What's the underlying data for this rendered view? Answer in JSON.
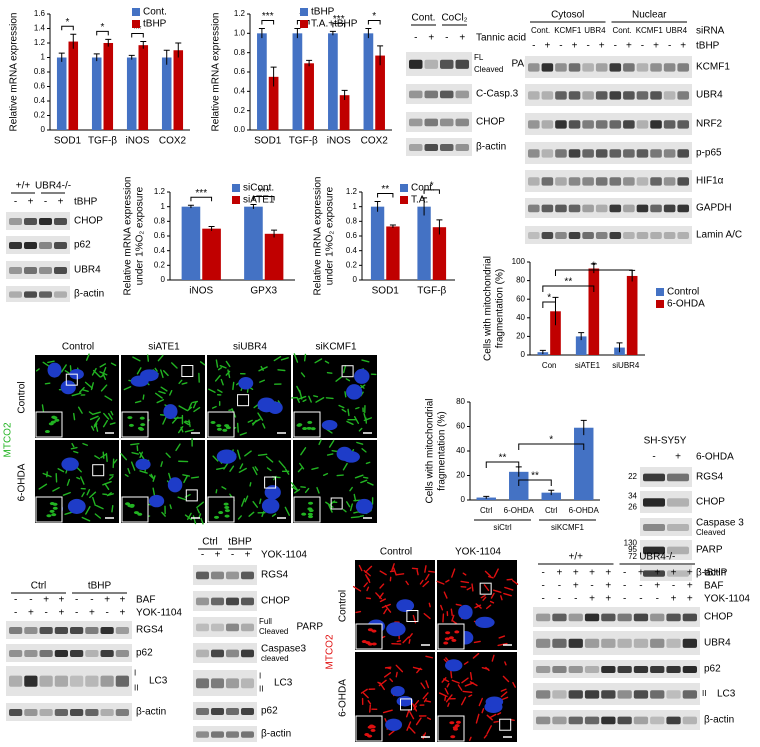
{
  "chart_data": [
    {
      "type": "bar",
      "y_label": [
        "Relative mRNA expression"
      ],
      "categories": [
        "SOD1",
        "TGF-β",
        "iNOS",
        "COX2"
      ],
      "series": [
        {
          "name": "Cont.",
          "color": "#4472c4",
          "values": [
            1,
            1,
            1,
            1
          ],
          "errors": [
            0.06,
            0.05,
            0.03,
            0.1
          ]
        },
        {
          "name": "tBHP",
          "color": "#c00000",
          "values": [
            1.22,
            1.2,
            1.17,
            1.1
          ],
          "errors": [
            0.1,
            0.05,
            0.05,
            0.1
          ]
        }
      ],
      "significance": [
        "*",
        "*",
        "**",
        null
      ],
      "ylim": [
        0,
        1.6
      ],
      "yticks": [
        0,
        0.2,
        0.4,
        0.6,
        0.8,
        1,
        1.2,
        1.4,
        1.6
      ]
    },
    {
      "type": "bar",
      "y_label": [
        "Relative mRNA expression"
      ],
      "categories": [
        "SOD1",
        "TGF-β",
        "iNOS",
        "COX2"
      ],
      "series": [
        {
          "name": "tBHP",
          "color": "#4472c4",
          "values": [
            1,
            1,
            1,
            1
          ],
          "errors": [
            0.05,
            0.05,
            0.02,
            0.05
          ]
        },
        {
          "name": "T.A.+tBHP",
          "color": "#c00000",
          "values": [
            0.55,
            0.69,
            0.36,
            0.77
          ],
          "errors": [
            0.1,
            0.03,
            0.05,
            0.1
          ]
        }
      ],
      "significance": [
        "***",
        "**",
        "***",
        "*"
      ],
      "ylim": [
        0,
        1.2
      ],
      "yticks": [
        {
          "value": 0,
          "label": "0.0"
        },
        0.2,
        0.4,
        0.6,
        0.8,
        {
          "value": 1,
          "label": "1.0"
        },
        1.2
      ]
    },
    {
      "type": "bar",
      "y_label": [
        "Relative mRNA expression",
        "under 1%O₂ exposure"
      ],
      "categories": [
        "iNOS",
        "GPX3"
      ],
      "series": [
        {
          "name": "siCont.",
          "color": "#4472c4",
          "values": [
            1,
            1
          ],
          "errors": [
            0.02,
            0.03
          ]
        },
        {
          "name": "siATE1",
          "color": "#c00000",
          "values": [
            0.7,
            0.63
          ],
          "errors": [
            0.03,
            0.05
          ]
        }
      ],
      "significance": [
        "***",
        "***"
      ],
      "ylim": [
        0,
        1.2
      ],
      "yticks": [
        0,
        0.2,
        0.4,
        0.6,
        0.8,
        1,
        1.2
      ]
    },
    {
      "type": "bar",
      "y_label": [
        "Relative mRNA expression",
        "under 1%O₂ exposure"
      ],
      "categories": [
        "SOD1",
        "TGF-β"
      ],
      "series": [
        {
          "name": "Cont.",
          "color": "#4472c4",
          "values": [
            1,
            1
          ],
          "errors": [
            0.07,
            0.12
          ]
        },
        {
          "name": "T.A.",
          "color": "#c00000",
          "values": [
            0.73,
            0.72
          ],
          "errors": [
            0.02,
            0.1
          ]
        }
      ],
      "significance": [
        "**",
        "*"
      ],
      "ylim": [
        0,
        1.2
      ],
      "yticks": [
        0,
        0.2,
        0.4,
        0.6,
        0.8,
        1,
        1.2
      ]
    },
    {
      "type": "bar",
      "y_label": [
        "Cells with mitochondrial",
        "fragmentation (%)"
      ],
      "categories": [
        "Con",
        "siATE1",
        "siUBR4"
      ],
      "series": [
        {
          "name": "Control",
          "color": "#4472c4",
          "values": [
            3,
            20,
            8
          ],
          "errors": [
            2,
            4,
            5
          ]
        },
        {
          "name": "6-OHDA",
          "color": "#c00000",
          "values": [
            47,
            93,
            85
          ],
          "errors": [
            15,
            5,
            6
          ]
        }
      ],
      "brackets": [
        "*",
        "*",
        "**"
      ],
      "ylim": [
        0,
        100
      ],
      "yticks": [
        0,
        20,
        40,
        60,
        80,
        100
      ]
    },
    {
      "type": "bar",
      "y_label": [
        "Cells with mitochondrial",
        "fragmentation (%)"
      ],
      "categories": [
        "Ctrl",
        "6-OHDA",
        "Ctrl",
        "6-OHDA"
      ],
      "groups": [
        "siCtrl",
        "siKCMF1"
      ],
      "series": [
        {
          "color": "#4472c4",
          "values": [
            2,
            23,
            6,
            59
          ],
          "errors": [
            1,
            4,
            2,
            6
          ]
        }
      ],
      "brackets": [
        "**",
        "*",
        "**"
      ],
      "ylim": [
        0,
        80
      ],
      "yticks": [
        0,
        20,
        40,
        60,
        80
      ]
    }
  ],
  "blots": [
    {
      "headers": [
        "Cont.",
        "CoCl₂"
      ],
      "conditions": [
        {
          "label": "Tannic acid",
          "signs": [
            "-",
            "+",
            "-",
            "+"
          ]
        }
      ],
      "rows": [
        {
          "label": "PARP",
          "marks": [
            "FL",
            "Cleaved"
          ]
        },
        {
          "label": "C-Casp.3"
        },
        {
          "label": "CHOP"
        },
        {
          "label": "β-actin"
        }
      ]
    },
    {
      "headers": [
        "Cytosol",
        "Nuclear"
      ],
      "conditions": [
        {
          "label": "siRNA",
          "signs": [
            "Cont.",
            "KCMF1",
            "UBR4",
            "Cont.",
            "KCMF1",
            "UBR4"
          ]
        },
        {
          "label": "tBHP",
          "signs": [
            "-",
            "+",
            "-",
            "+",
            "-",
            "+",
            "-",
            "+",
            "-",
            "+",
            "-",
            "+"
          ]
        }
      ],
      "rows": [
        {
          "label": "KCMF1"
        },
        {
          "label": "UBR4"
        },
        {
          "label": "NRF2"
        },
        {
          "label": "p-p65"
        },
        {
          "label": "HIF1α"
        },
        {
          "label": "GAPDH"
        },
        {
          "label": "Lamin A/C"
        }
      ]
    },
    {
      "headers": [
        "+/+",
        "UBR4-/-"
      ],
      "conditions": [
        {
          "label": "tBHP",
          "signs": [
            "-",
            "+",
            "-",
            "+"
          ]
        }
      ],
      "rows": [
        {
          "label": "CHOP"
        },
        {
          "label": "p62"
        },
        {
          "label": "UBR4"
        },
        {
          "label": "β-actin"
        }
      ]
    },
    {
      "title": "SH-SY5Y",
      "conditions": [
        {
          "label": "6-OHDA",
          "signs": [
            "-",
            "+"
          ]
        }
      ],
      "rows": [
        {
          "label": "RGS4",
          "mw": [
            "22"
          ]
        },
        {
          "label": "CHOP",
          "mw": [
            "34",
            "26"
          ]
        },
        {
          "label": "Caspase 3",
          "sublabel": "Cleaved"
        },
        {
          "label": "PARP",
          "mw": [
            "130",
            "95",
            "72"
          ]
        },
        {
          "label": "β-actin"
        }
      ]
    },
    {
      "headers": [
        "Ctrl",
        "tBHP"
      ],
      "conditions": [
        {
          "label": "BAF",
          "signs": [
            "-",
            "-",
            "+",
            "+",
            "-",
            "-",
            "+",
            "+"
          ]
        },
        {
          "label": "YOK-1104",
          "signs": [
            "-",
            "+",
            "-",
            "+",
            "-",
            "+",
            "-",
            "+"
          ]
        }
      ],
      "rows": [
        {
          "label": "RGS4"
        },
        {
          "label": "p62"
        },
        {
          "label": "LC3",
          "marks": [
            "I",
            "II"
          ]
        },
        {
          "label": "β-actin"
        }
      ]
    },
    {
      "headers": [
        "Ctrl",
        "tBHP"
      ],
      "conditions": [
        {
          "label": "YOK-1104",
          "signs": [
            "-",
            "+",
            "-",
            "+"
          ]
        }
      ],
      "rows": [
        {
          "label": "RGS4"
        },
        {
          "label": "CHOP"
        },
        {
          "label": "PARP",
          "marks": [
            "Full",
            "Cleaved"
          ]
        },
        {
          "label": "Caspase3",
          "sublabel": "cleaved"
        },
        {
          "label": "LC3",
          "marks": [
            "I",
            "II"
          ]
        },
        {
          "label": "p62"
        },
        {
          "label": "β-actin"
        }
      ]
    },
    {
      "headers": [
        "+/+",
        "UBR4-/-"
      ],
      "conditions": [
        {
          "label": "tBHP",
          "signs": [
            "-",
            "+",
            "+",
            "+",
            "+",
            "-",
            "+",
            "+",
            "+",
            "+"
          ]
        },
        {
          "label": "BAF",
          "signs": [
            "-",
            "-",
            "+",
            "-",
            "+",
            "-",
            "-",
            "+",
            "-",
            "+"
          ]
        },
        {
          "label": "YOK-1104",
          "signs": [
            "-",
            "-",
            "-",
            "+",
            "+",
            "-",
            "-",
            "-",
            "+",
            "+"
          ]
        }
      ],
      "rows": [
        {
          "label": "CHOP"
        },
        {
          "label": "UBR4"
        },
        {
          "label": "p62"
        },
        {
          "label": "LC3",
          "marks": [
            "II"
          ]
        },
        {
          "label": "β-actin"
        }
      ]
    }
  ],
  "micrographs": [
    {
      "columns": [
        "Control",
        "siATE1",
        "siUBR4",
        "siKCMF1"
      ],
      "rows": [
        "Control",
        "6-OHDA"
      ],
      "stain": "MTCO2",
      "color": "#22b422"
    },
    {
      "columns": [
        "Control",
        "YOK-1104"
      ],
      "rows": [
        "Control",
        "6-OHDA"
      ],
      "stain": "MTCO2",
      "color": "#e01010"
    }
  ]
}
